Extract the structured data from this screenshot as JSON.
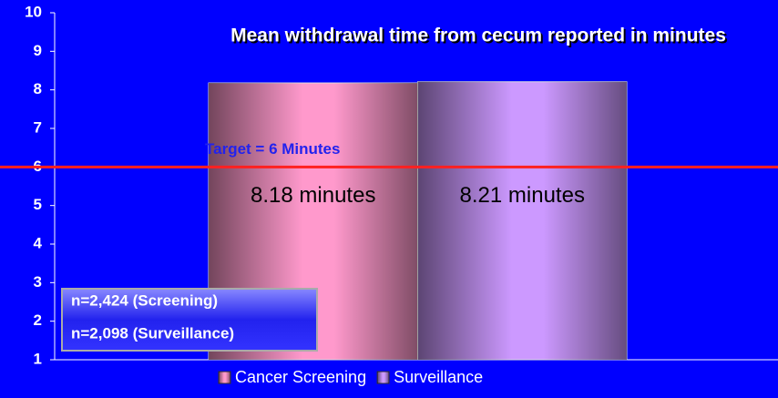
{
  "chart_data": {
    "type": "bar",
    "title": "Mean withdrawal time from cecum reported in minutes",
    "categories": [
      null
    ],
    "series": [
      {
        "name": "Cancer Screening",
        "color": "#ff99cc",
        "values": [
          8.18
        ],
        "value_labels": [
          "8.18 minutes"
        ]
      },
      {
        "name": "Surveillance",
        "color": "#cc99ff",
        "values": [
          8.21
        ],
        "value_labels": [
          "8.21 minutes"
        ]
      }
    ],
    "ylim": [
      1,
      10
    ],
    "yticks": [
      1,
      2,
      3,
      4,
      5,
      6,
      7,
      8,
      9,
      10
    ],
    "target": {
      "value": 6,
      "label": "Target = 6 Minutes",
      "color": "#ff2020"
    },
    "annotations": [
      "n=2,424 (Screening)",
      "n=2,098 (Surveillance)"
    ],
    "legend": "bottom"
  }
}
